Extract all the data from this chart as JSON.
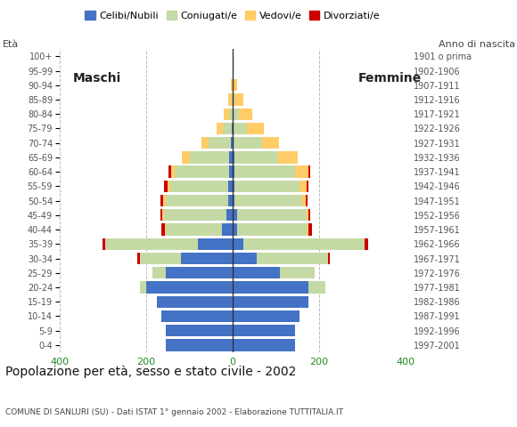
{
  "age_groups_bottom_to_top": [
    "0-4",
    "5-9",
    "10-14",
    "15-19",
    "20-24",
    "25-29",
    "30-34",
    "35-39",
    "40-44",
    "45-49",
    "50-54",
    "55-59",
    "60-64",
    "65-69",
    "70-74",
    "75-79",
    "80-84",
    "85-89",
    "90-94",
    "95-99",
    "100+"
  ],
  "birth_years_bottom_to_top": [
    "1997-2001",
    "1992-1996",
    "1987-1991",
    "1982-1986",
    "1977-1981",
    "1972-1976",
    "1967-1971",
    "1962-1966",
    "1957-1961",
    "1952-1956",
    "1947-1951",
    "1942-1946",
    "1937-1941",
    "1932-1936",
    "1927-1931",
    "1922-1926",
    "1917-1921",
    "1912-1916",
    "1907-1911",
    "1902-1906",
    "1901 o prima"
  ],
  "colors": {
    "celibi": "#4472C4",
    "coniugati": "#C5D9A5",
    "vedovi": "#FFCC66",
    "divorziati": "#CC0000"
  },
  "males_bottom_to_top": {
    "celibi": [
      155,
      155,
      165,
      175,
      200,
      155,
      120,
      80,
      25,
      14,
      10,
      10,
      8,
      8,
      5,
      2,
      0,
      0,
      0,
      0,
      0
    ],
    "coniugati": [
      0,
      0,
      0,
      0,
      15,
      30,
      95,
      215,
      130,
      145,
      145,
      135,
      125,
      90,
      50,
      20,
      8,
      3,
      1,
      0,
      0
    ],
    "vedovi": [
      0,
      0,
      0,
      0,
      0,
      0,
      0,
      0,
      2,
      3,
      5,
      5,
      10,
      20,
      18,
      15,
      12,
      8,
      4,
      0,
      0
    ],
    "divorziati": [
      0,
      0,
      0,
      0,
      0,
      0,
      5,
      5,
      8,
      5,
      6,
      8,
      5,
      0,
      0,
      0,
      0,
      0,
      0,
      0,
      0
    ]
  },
  "females_bottom_to_top": {
    "nubili": [
      145,
      145,
      155,
      175,
      175,
      110,
      55,
      25,
      10,
      10,
      5,
      5,
      5,
      5,
      3,
      2,
      0,
      0,
      0,
      0,
      0
    ],
    "coniugate": [
      0,
      0,
      0,
      0,
      40,
      80,
      165,
      280,
      160,
      160,
      155,
      150,
      140,
      100,
      65,
      30,
      15,
      5,
      2,
      0,
      0
    ],
    "vedove": [
      0,
      0,
      0,
      0,
      0,
      0,
      0,
      0,
      5,
      5,
      8,
      15,
      30,
      45,
      40,
      40,
      30,
      20,
      8,
      3,
      0
    ],
    "divorziate": [
      0,
      0,
      0,
      0,
      0,
      0,
      5,
      8,
      8,
      5,
      5,
      5,
      5,
      0,
      0,
      0,
      0,
      0,
      0,
      0,
      0
    ]
  },
  "xlim": 400,
  "title": "Popolazione per età, sesso e stato civile - 2002",
  "subtitle": "COMUNE DI SANLURI (SU) - Dati ISTAT 1° gennaio 2002 - Elaborazione TUTTITALIA.IT",
  "eta_label": "Età",
  "nascita_label": "Anno di nascita",
  "legend_labels": [
    "Celibi/Nubili",
    "Coniugati/e",
    "Vedovi/e",
    "Divorziati/e"
  ]
}
